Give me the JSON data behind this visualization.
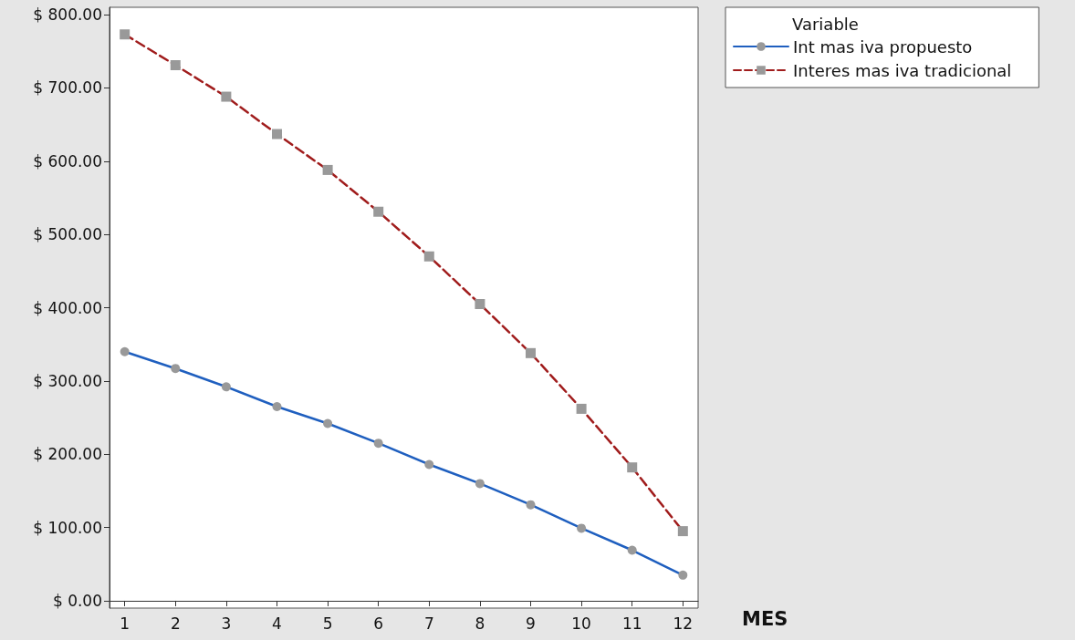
{
  "chart_data": {
    "type": "line",
    "xlabel": "MES",
    "legend_title": "Variable",
    "legend": "top right",
    "x": [
      1,
      2,
      3,
      4,
      5,
      6,
      7,
      8,
      9,
      10,
      11,
      12
    ],
    "xlim": [
      0.7,
      12.3
    ],
    "xticks": [
      1,
      2,
      3,
      4,
      5,
      6,
      7,
      8,
      9,
      10,
      11,
      12
    ],
    "ylim": [
      -10,
      810
    ],
    "yticks": [
      {
        "value": 0,
        "label": "$ 0.00"
      },
      {
        "value": 100,
        "label": "$ 100.00"
      },
      {
        "value": 200,
        "label": "$ 200.00"
      },
      {
        "value": 300,
        "label": "$ 300.00"
      },
      {
        "value": 400,
        "label": "$ 400.00"
      },
      {
        "value": 500,
        "label": "$ 500.00"
      },
      {
        "value": 600,
        "label": "$ 600.00"
      },
      {
        "value": 700,
        "label": "$ 700.00"
      },
      {
        "value": 800,
        "label": "$ 800.00"
      }
    ],
    "series": [
      {
        "name": "Int mas iva propuesto",
        "color": "#1f5fbf",
        "marker": "circle",
        "line_style": "solid",
        "values": [
          340,
          317,
          292,
          265,
          242,
          215,
          186,
          160,
          131,
          99,
          69,
          35
        ]
      },
      {
        "name": "Interes mas iva tradicional",
        "color": "#a01c1c",
        "marker": "square",
        "line_style": "dashed",
        "values": [
          773,
          731,
          688,
          637,
          588,
          531,
          470,
          405,
          338,
          262,
          182,
          95
        ]
      }
    ]
  }
}
